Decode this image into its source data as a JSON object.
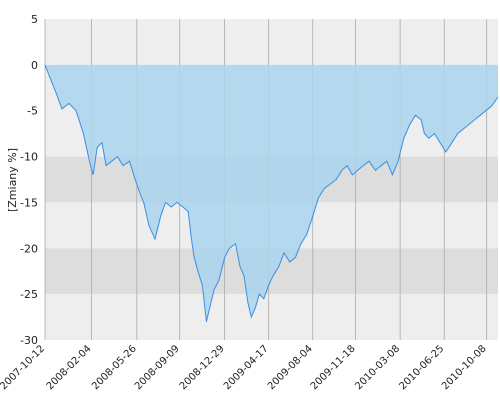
{
  "chart_data": {
    "type": "area",
    "title": "",
    "xlabel": "",
    "ylabel": "[Zmiany %]",
    "ylim": [
      -30,
      5
    ],
    "yticks": [
      5,
      0,
      -5,
      -10,
      -15,
      -20,
      -25,
      -30
    ],
    "xlim": [
      "2007-10-12",
      "2010-11-05"
    ],
    "xticks": [
      "2007-10-12",
      "2008-02-04",
      "2008-05-26",
      "2008-09-09",
      "2008-12-29",
      "2009-04-17",
      "2009-08-04",
      "2009-11-18",
      "2010-03-08",
      "2010-06-25",
      "2010-10-08"
    ],
    "grid": true,
    "legend": "none",
    "colors": {
      "line": "#3b8fe0",
      "fill": "#a9d3ec",
      "band_light": "#eeeeee",
      "band_dark": "#dddddd",
      "vgrid": "#aaaaaa"
    },
    "series": [
      {
        "x": [
          "2007-10-12",
          "2007-10-25",
          "2007-11-08",
          "2007-11-23",
          "2007-12-10",
          "2007-12-28",
          "2008-01-15",
          "2008-01-30",
          "2008-02-08",
          "2008-02-18",
          "2008-03-01",
          "2008-03-11",
          "2008-03-25",
          "2008-04-08",
          "2008-04-22",
          "2008-05-08",
          "2008-05-22",
          "2008-06-03",
          "2008-06-12",
          "2008-06-25",
          "2008-07-10",
          "2008-07-24",
          "2008-08-05",
          "2008-08-19",
          "2008-09-02",
          "2008-09-17",
          "2008-09-30",
          "2008-10-08",
          "2008-10-15",
          "2008-10-24",
          "2008-11-04",
          "2008-11-14",
          "2008-11-25",
          "2008-12-03",
          "2008-12-15",
          "2008-12-29",
          "2009-01-10",
          "2009-01-25",
          "2009-02-05",
          "2009-02-15",
          "2009-02-25",
          "2009-03-05",
          "2009-03-15",
          "2009-03-25",
          "2009-04-05",
          "2009-04-17",
          "2009-04-28",
          "2009-05-12",
          "2009-05-25",
          "2009-06-08",
          "2009-06-22",
          "2009-07-06",
          "2009-07-20",
          "2009-08-04",
          "2009-08-18",
          "2009-09-01",
          "2009-09-16",
          "2009-10-01",
          "2009-10-15",
          "2009-10-28",
          "2009-11-10",
          "2009-11-23",
          "2009-12-07",
          "2009-12-21",
          "2010-01-06",
          "2010-01-20",
          "2010-02-03",
          "2010-02-17",
          "2010-03-03",
          "2010-03-17",
          "2010-04-01",
          "2010-04-15",
          "2010-04-29",
          "2010-05-07",
          "2010-05-18",
          "2010-06-01",
          "2010-06-15",
          "2010-06-29",
          "2010-07-14",
          "2010-07-28",
          "2010-08-11",
          "2010-08-25",
          "2010-09-08",
          "2010-09-22",
          "2010-10-06",
          "2010-10-20",
          "2010-11-05"
        ],
        "values": [
          0.0,
          -1.5,
          -3.0,
          -4.8,
          -4.2,
          -5.0,
          -7.5,
          -10.5,
          -12.0,
          -9.0,
          -8.5,
          -11.0,
          -10.5,
          -10.0,
          -11.0,
          -10.5,
          -12.5,
          -14.0,
          -15.0,
          -17.5,
          -19.0,
          -16.5,
          -15.0,
          -15.5,
          -15.0,
          -15.5,
          -16.0,
          -19.0,
          -21.0,
          -22.5,
          -24.0,
          -28.0,
          -26.0,
          -24.5,
          -23.5,
          -21.0,
          -20.0,
          -19.5,
          -22.0,
          -23.0,
          -26.0,
          -27.5,
          -26.5,
          -25.0,
          -25.5,
          -24.0,
          -23.0,
          -22.0,
          -20.5,
          -21.5,
          -21.0,
          -19.5,
          -18.5,
          -16.5,
          -14.5,
          -13.5,
          -13.0,
          -12.5,
          -11.5,
          -11.0,
          -12.0,
          -11.5,
          -11.0,
          -10.5,
          -11.5,
          -11.0,
          -10.5,
          -12.0,
          -10.5,
          -8.0,
          -6.5,
          -5.5,
          -6.0,
          -7.5,
          -8.0,
          -7.5,
          -8.5,
          -9.5,
          -8.5,
          -7.5,
          -7.0,
          -6.5,
          -6.0,
          -5.5,
          -5.0,
          -4.5,
          -3.5
        ]
      }
    ]
  }
}
